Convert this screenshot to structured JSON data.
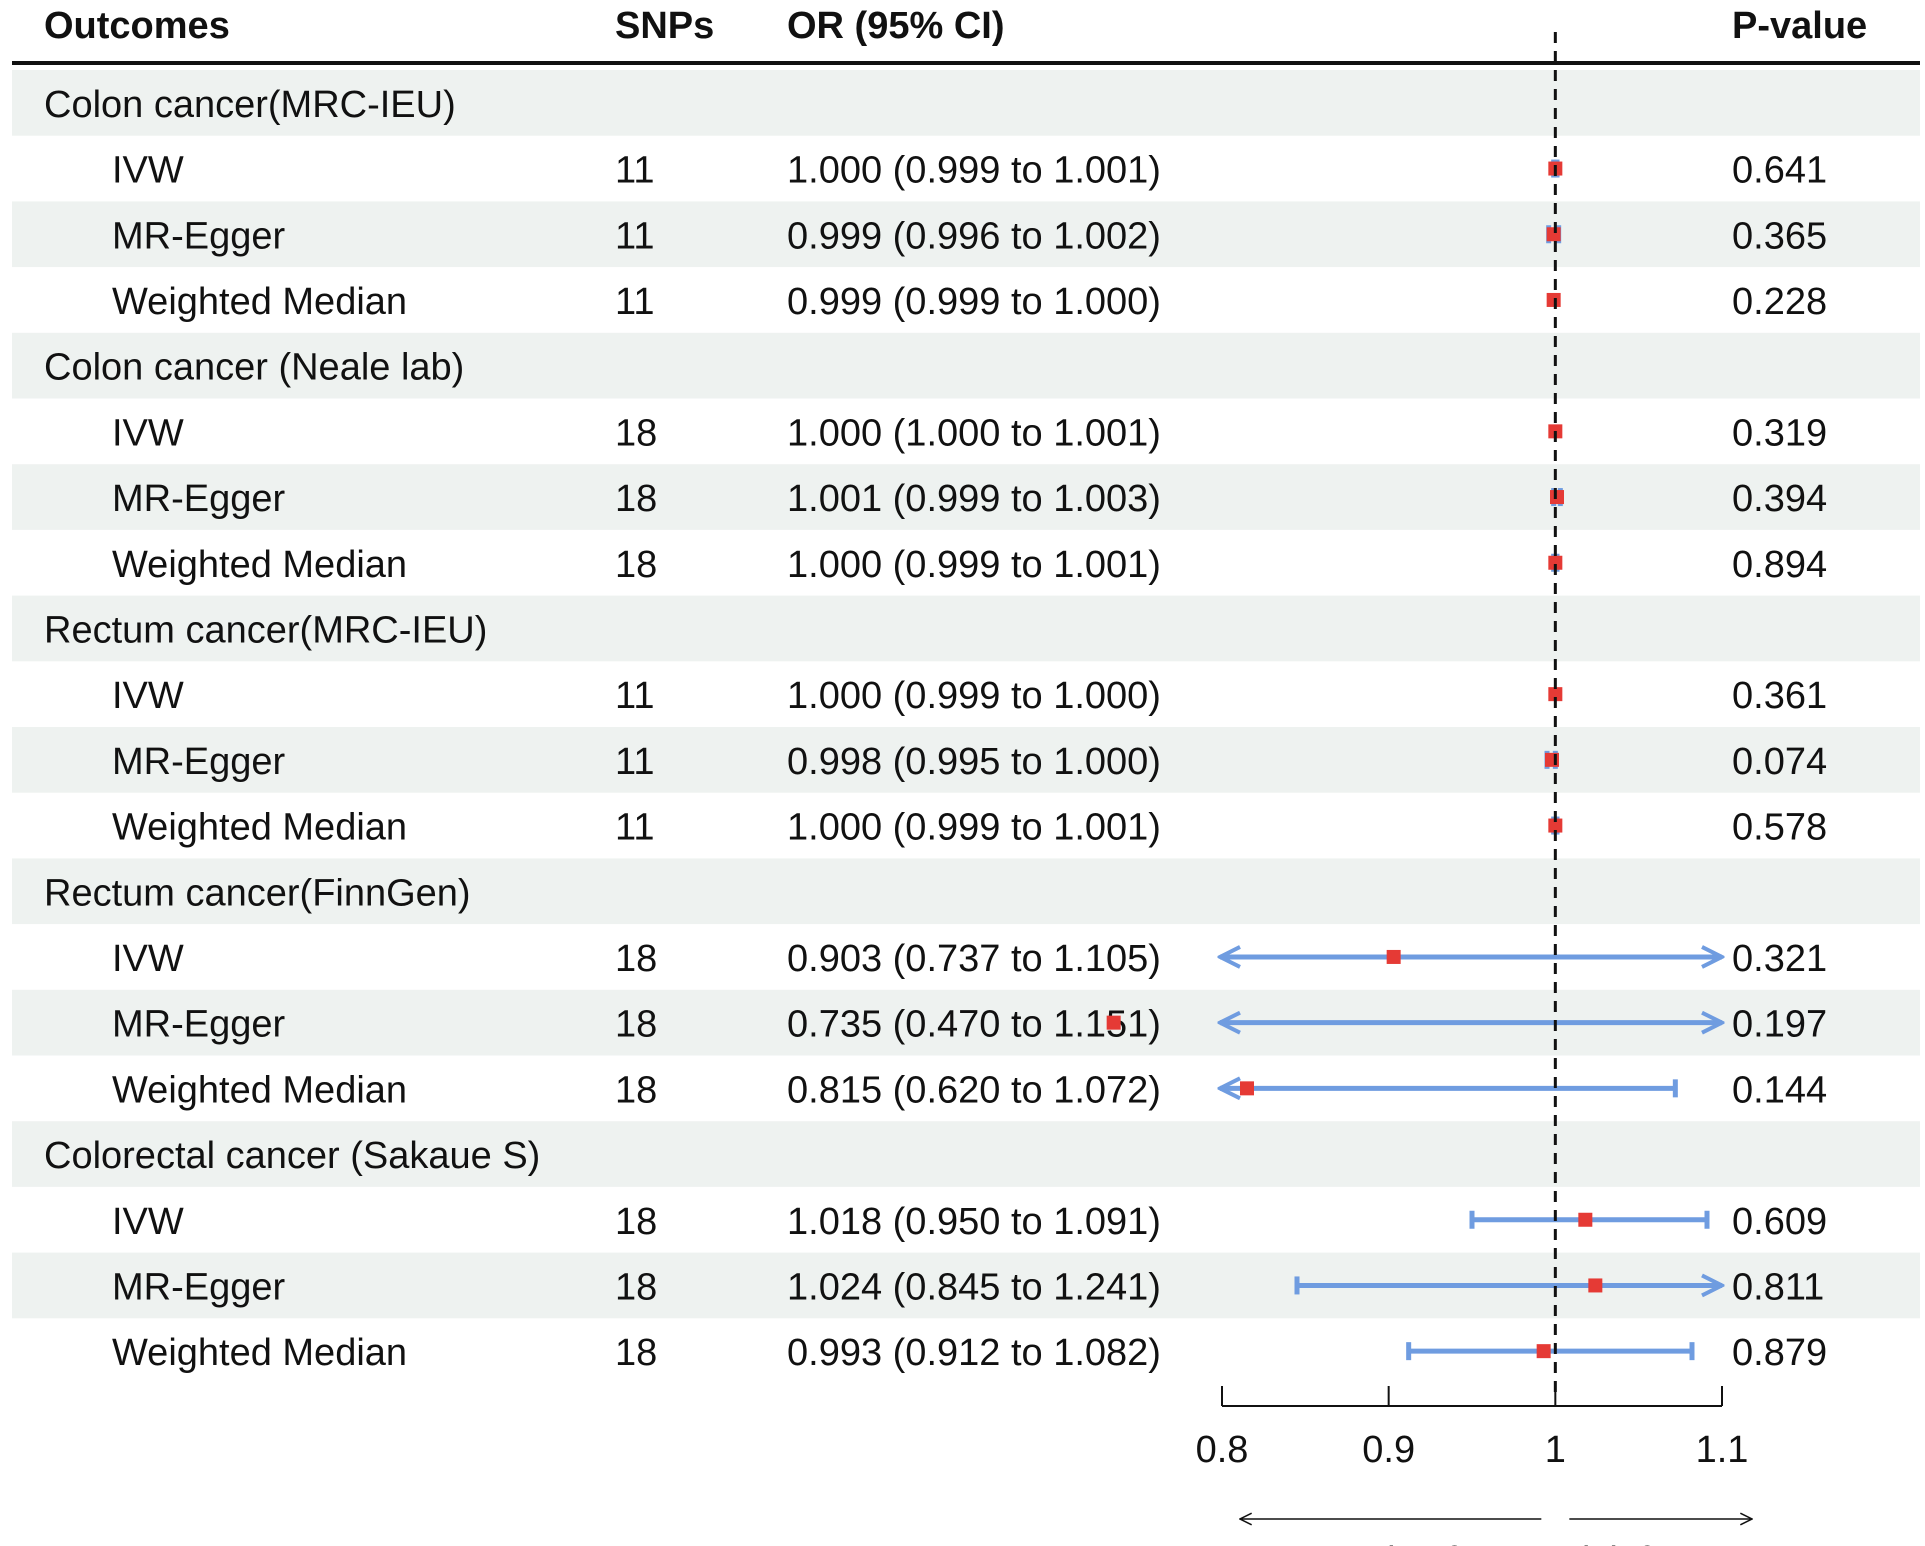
{
  "headers": {
    "outcomes": "Outcomes",
    "snps": "SNPs",
    "or": "OR (95% CI)",
    "pvalue": "P-value"
  },
  "colors": {
    "band": "#eef2f0",
    "point": "#e53a35",
    "ci": "#6f9ce0",
    "ink": "#111111"
  },
  "chart_data": {
    "type": "forest",
    "xlim": [
      0.8,
      1.1
    ],
    "reference_line": 1,
    "x_ticks": [
      0.8,
      0.9,
      1,
      1.1
    ],
    "x_tick_labels": [
      "0.8",
      "0.9",
      "1",
      "1.1"
    ],
    "direction_labels": {
      "left": "protective factor",
      "right": "risk factor"
    },
    "groups": [
      {
        "label": "Colon cancer(MRC-IEU)",
        "rows": [
          {
            "method": "IVW",
            "snps": "11",
            "or_text": "1.000 (0.999 to 1.001)",
            "or": 1.0,
            "lo": 0.999,
            "hi": 1.001,
            "p": "0.641"
          },
          {
            "method": "MR-Egger",
            "snps": "11",
            "or_text": "0.999 (0.996 to 1.002)",
            "or": 0.999,
            "lo": 0.996,
            "hi": 1.002,
            "p": "0.365"
          },
          {
            "method": "Weighted Median",
            "snps": "11",
            "or_text": "0.999 (0.999 to 1.000)",
            "or": 0.999,
            "lo": 0.999,
            "hi": 1.0,
            "p": "0.228"
          }
        ]
      },
      {
        "label": "Colon cancer (Neale lab)",
        "rows": [
          {
            "method": "IVW",
            "snps": "18",
            "or_text": "1.000 (1.000 to 1.001)",
            "or": 1.0,
            "lo": 1.0,
            "hi": 1.001,
            "p": "0.319"
          },
          {
            "method": "MR-Egger",
            "snps": "18",
            "or_text": "1.001 (0.999 to 1.003)",
            "or": 1.001,
            "lo": 0.999,
            "hi": 1.003,
            "p": "0.394"
          },
          {
            "method": "Weighted Median",
            "snps": "18",
            "or_text": "1.000 (0.999 to 1.001)",
            "or": 1.0,
            "lo": 0.999,
            "hi": 1.001,
            "p": "0.894"
          }
        ]
      },
      {
        "label": "Rectum cancer(MRC-IEU)",
        "rows": [
          {
            "method": "IVW",
            "snps": "11",
            "or_text": "1.000 (0.999 to 1.000)",
            "or": 1.0,
            "lo": 0.999,
            "hi": 1.0,
            "p": "0.361"
          },
          {
            "method": "MR-Egger",
            "snps": "11",
            "or_text": "0.998 (0.995 to 1.000)",
            "or": 0.998,
            "lo": 0.995,
            "hi": 1.0,
            "p": "0.074"
          },
          {
            "method": "Weighted Median",
            "snps": "11",
            "or_text": "1.000 (0.999 to 1.001)",
            "or": 1.0,
            "lo": 0.999,
            "hi": 1.001,
            "p": "0.578"
          }
        ]
      },
      {
        "label": "Rectum cancer(FinnGen)",
        "rows": [
          {
            "method": "IVW",
            "snps": "18",
            "or_text": "0.903 (0.737 to 1.105)",
            "or": 0.903,
            "lo": 0.737,
            "hi": 1.105,
            "p": "0.321"
          },
          {
            "method": "MR-Egger",
            "snps": "18",
            "or_text": "0.735 (0.470 to 1.151)",
            "or": 0.735,
            "lo": 0.47,
            "hi": 1.151,
            "p": "0.197"
          },
          {
            "method": "Weighted Median",
            "snps": "18",
            "or_text": "0.815 (0.620 to 1.072)",
            "or": 0.815,
            "lo": 0.62,
            "hi": 1.072,
            "p": "0.144"
          }
        ]
      },
      {
        "label": "Colorectal cancer (Sakaue S)",
        "rows": [
          {
            "method": "IVW",
            "snps": "18",
            "or_text": "1.018 (0.950 to 1.091)",
            "or": 1.018,
            "lo": 0.95,
            "hi": 1.091,
            "p": "0.609"
          },
          {
            "method": "MR-Egger",
            "snps": "18",
            "or_text": "1.024 (0.845 to 1.241)",
            "or": 1.024,
            "lo": 0.845,
            "hi": 1.241,
            "p": "0.811"
          },
          {
            "method": "Weighted Median",
            "snps": "18",
            "or_text": "0.993 (0.912 to 1.082)",
            "or": 0.993,
            "lo": 0.912,
            "hi": 1.082,
            "p": "0.879"
          }
        ]
      }
    ]
  }
}
